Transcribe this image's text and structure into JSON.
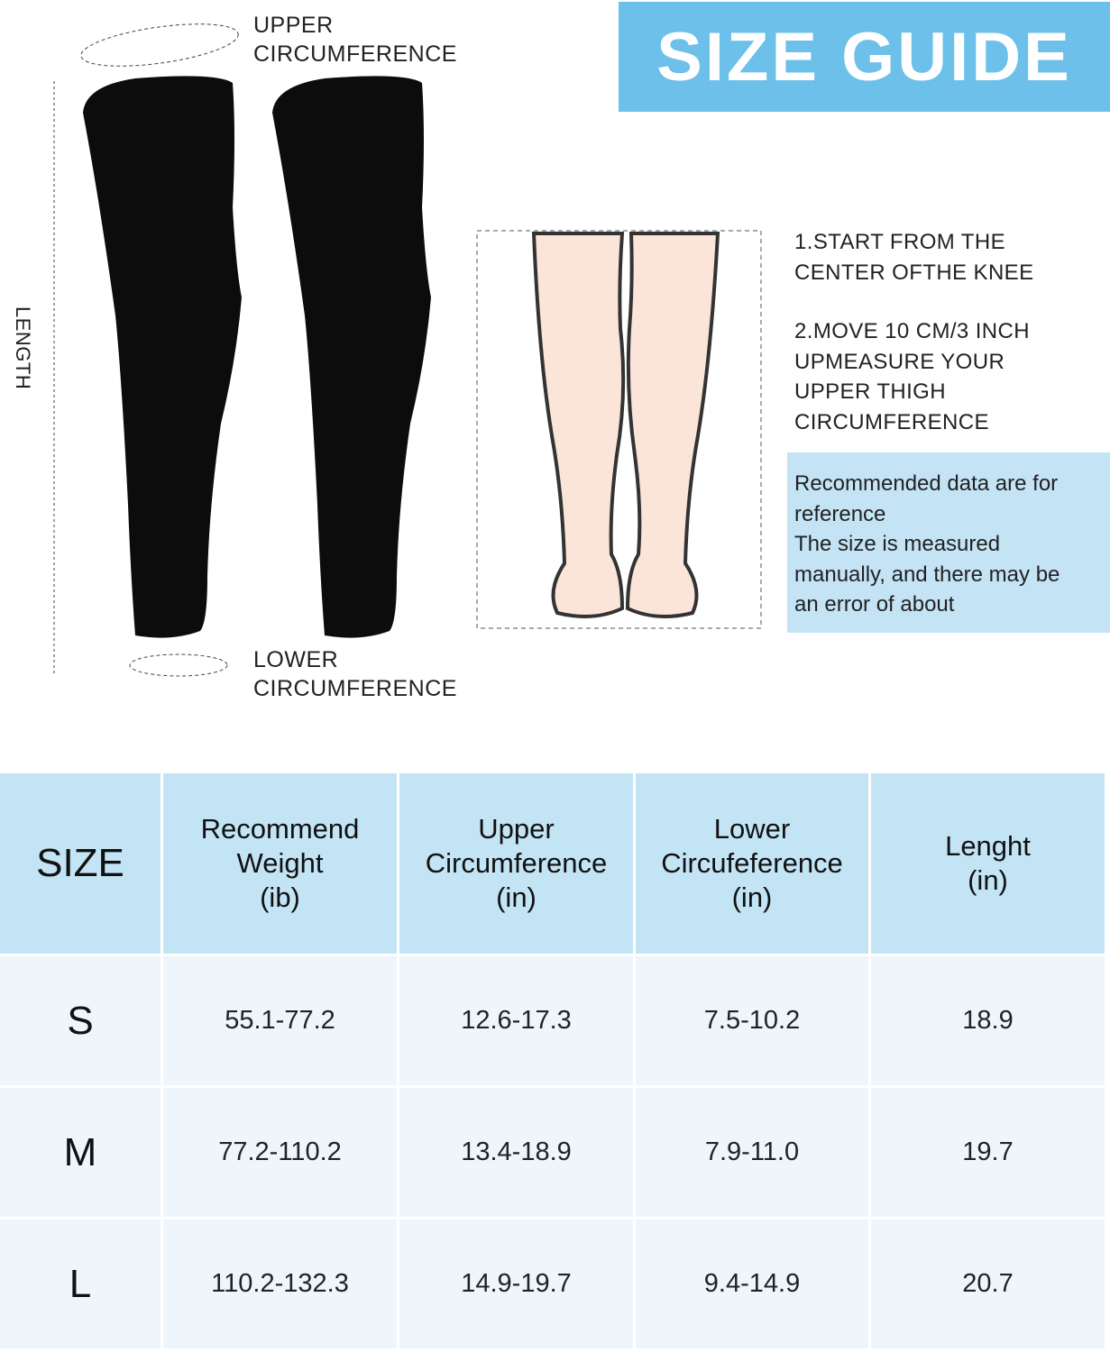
{
  "title": "SIZE GUIDE",
  "diagram_labels": {
    "upper": [
      "UPPER",
      "CIRCUMFERENCE"
    ],
    "lower": [
      "LOWER",
      "CIRCUMFERENCE"
    ],
    "length": "LENGTH"
  },
  "steps": [
    [
      "1.START FROM THE",
      "CENTER OFTHE KNEE"
    ],
    [
      "2.MOVE 10 CM/3 INCH",
      "UPMEASURE YOUR",
      "UPPER THIGH",
      "CIRCUMFERENCE"
    ]
  ],
  "note": [
    "Recommended data are for",
    "reference",
    "The size is measured",
    "manually, and there may be",
    "an error of about"
  ],
  "colors": {
    "title_bg": "#6cc0ea",
    "header_bg": "#c3e4f5",
    "row_bg": "#eef6fc",
    "note_bg": "#c4e3f5",
    "skin": "#fbe4d8"
  },
  "table": {
    "headers": [
      [
        "SIZE"
      ],
      [
        "Recommend",
        "Weight",
        "(ib)"
      ],
      [
        "Upper",
        "Circumference",
        "(in)"
      ],
      [
        "Lower",
        "Circufeference",
        "(in)"
      ],
      [
        "Lenght",
        "(in)"
      ]
    ],
    "rows": [
      [
        "S",
        "55.1-77.2",
        "12.6-17.3",
        "7.5-10.2",
        "18.9"
      ],
      [
        "M",
        "77.2-110.2",
        "13.4-18.9",
        "7.9-11.0",
        "19.7"
      ],
      [
        "L",
        "110.2-132.3",
        "14.9-19.7",
        "9.4-14.9",
        "20.7"
      ]
    ]
  }
}
